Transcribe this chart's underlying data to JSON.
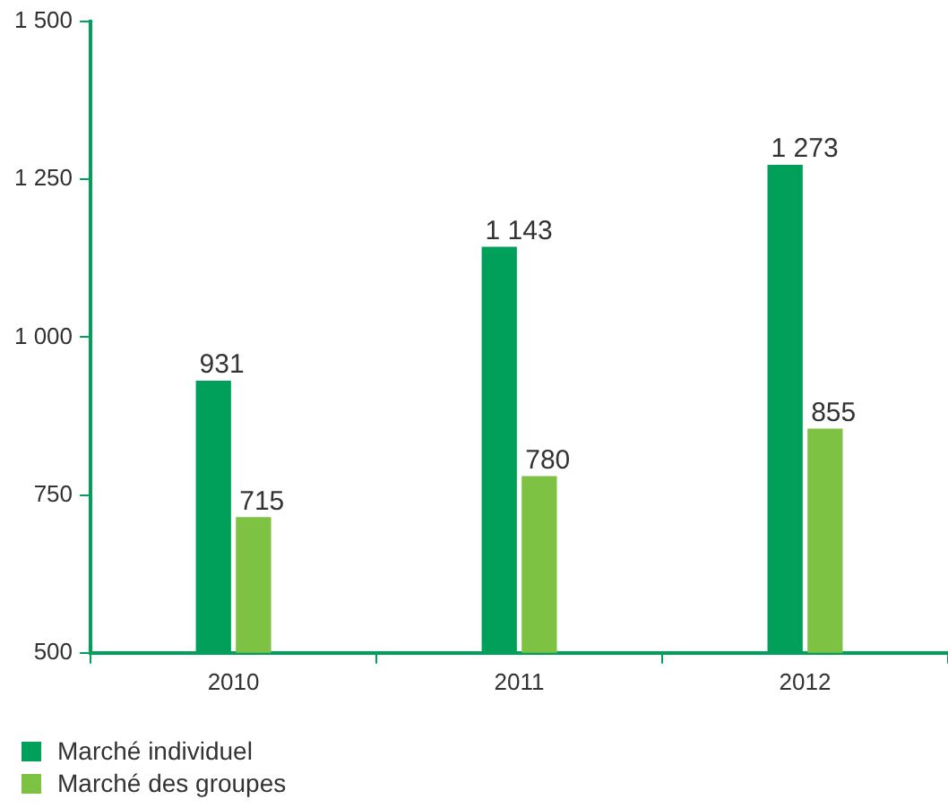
{
  "chart_data": {
    "type": "bar",
    "categories": [
      "2010",
      "2011",
      "2012"
    ],
    "series": [
      {
        "name": "Marché individuel",
        "color": "#00a05a",
        "values": [
          931,
          1143,
          1273
        ],
        "value_labels": [
          "931",
          "1 143",
          "1 273"
        ]
      },
      {
        "name": "Marché des groupes",
        "color": "#7dc242",
        "values": [
          715,
          780,
          855
        ],
        "value_labels": [
          "715",
          "780",
          "855"
        ]
      }
    ],
    "ylim": [
      500,
      1500
    ],
    "yticks": [
      500,
      750,
      {
        "value": 1000,
        "label": "1 000"
      },
      {
        "value": 1250,
        "label": "1 250"
      },
      {
        "value": 1500,
        "label": "1 500"
      }
    ],
    "grid": false,
    "legend": "bottom left"
  }
}
